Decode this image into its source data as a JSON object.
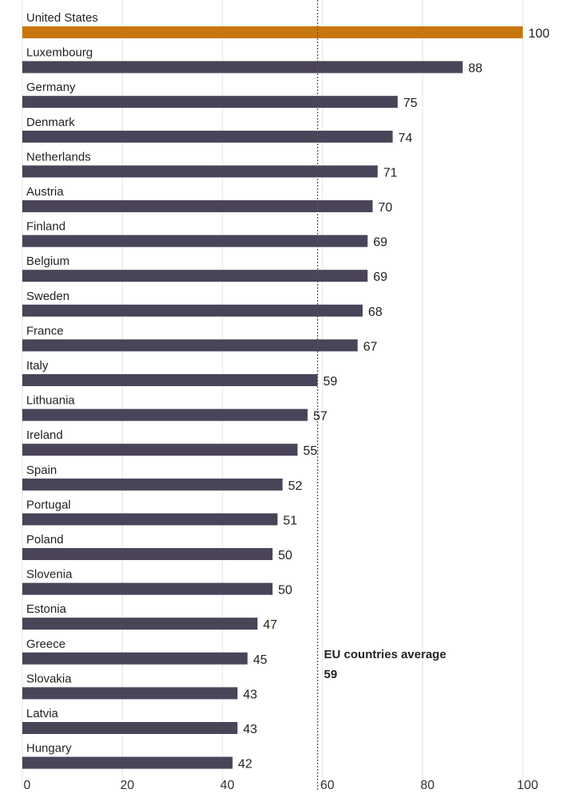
{
  "chart_data": {
    "type": "bar",
    "orientation": "horizontal",
    "categories": [
      "United States",
      "Luxembourg",
      "Germany",
      "Denmark",
      "Netherlands",
      "Austria",
      "Finland",
      "Belgium",
      "Sweden",
      "France",
      "Italy",
      "Lithuania",
      "Ireland",
      "Spain",
      "Portugal",
      "Poland",
      "Slovenia",
      "Estonia",
      "Greece",
      "Slovakia",
      "Latvia",
      "Hungary"
    ],
    "values": [
      100,
      88,
      75,
      74,
      71,
      70,
      69,
      69,
      68,
      67,
      59,
      57,
      55,
      52,
      51,
      50,
      50,
      47,
      45,
      43,
      43,
      42
    ],
    "highlight_category": "United States",
    "xlim": [
      0,
      100
    ],
    "xticks": [
      0,
      20,
      40,
      60,
      80,
      100
    ],
    "reference_line": {
      "value": 59,
      "label": "EU countries average",
      "value_label": "59"
    },
    "colors": {
      "highlight": "#c8760e",
      "bar": "#4a4458",
      "reference_line": "#555555",
      "grid": "#e4e4e4"
    },
    "grid": true,
    "title": "",
    "xlabel": "",
    "ylabel": ""
  }
}
